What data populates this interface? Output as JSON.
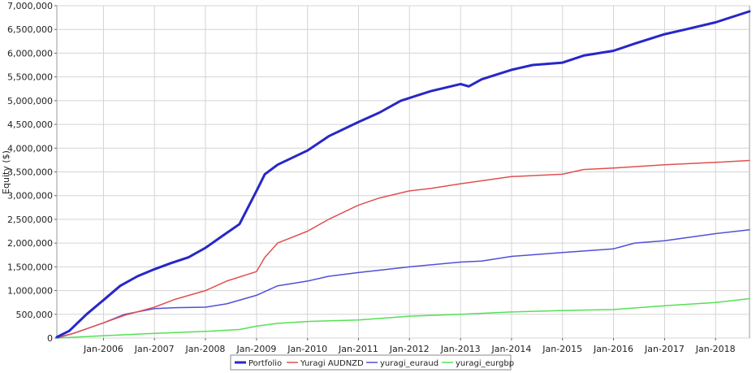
{
  "chart_data": {
    "type": "line",
    "title": "",
    "xlabel": "",
    "ylabel": "Equity ($)",
    "grid": true,
    "legend_position": "bottom-center",
    "xlim": [
      "2005-02-01",
      "2018-09-01"
    ],
    "ylim": [
      0,
      7000000
    ],
    "y_ticks": [
      {
        "value": 0,
        "label": "0"
      },
      {
        "value": 500000,
        "label": "500,000"
      },
      {
        "value": 1000000,
        "label": "1,000,000"
      },
      {
        "value": 1500000,
        "label": "1,500,000"
      },
      {
        "value": 2000000,
        "label": "2,000,000"
      },
      {
        "value": 2500000,
        "label": "2,500,000"
      },
      {
        "value": 3000000,
        "label": "3,000,000"
      },
      {
        "value": 3500000,
        "label": "3,500,000"
      },
      {
        "value": 4000000,
        "label": "4,000,000"
      },
      {
        "value": 4500000,
        "label": "4,500,000"
      },
      {
        "value": 5000000,
        "label": "5,000,000"
      },
      {
        "value": 5500000,
        "label": "5,500,000"
      },
      {
        "value": 6000000,
        "label": "6,000,000"
      },
      {
        "value": 6500000,
        "label": "6,500,000"
      },
      {
        "value": 7000000,
        "label": "7,000,000"
      }
    ],
    "x_ticks": [
      {
        "value": "2006-01-01",
        "label": "Jan-2006"
      },
      {
        "value": "2007-01-01",
        "label": "Jan-2007"
      },
      {
        "value": "2008-01-01",
        "label": "Jan-2008"
      },
      {
        "value": "2009-01-01",
        "label": "Jan-2009"
      },
      {
        "value": "2010-01-01",
        "label": "Jan-2010"
      },
      {
        "value": "2011-01-01",
        "label": "Jan-2011"
      },
      {
        "value": "2012-01-01",
        "label": "Jan-2012"
      },
      {
        "value": "2013-01-01",
        "label": "Jan-2013"
      },
      {
        "value": "2014-01-01",
        "label": "Jan-2014"
      },
      {
        "value": "2015-01-01",
        "label": "Jan-2015"
      },
      {
        "value": "2016-01-01",
        "label": "Jan-2016"
      },
      {
        "value": "2017-01-01",
        "label": "Jan-2017"
      },
      {
        "value": "2018-01-01",
        "label": "Jan-2018"
      }
    ],
    "series": [
      {
        "name": "Portfolio",
        "color": "#2727c8",
        "width": 3,
        "points": [
          [
            "2005-02-01",
            20000
          ],
          [
            "2005-05-01",
            150000
          ],
          [
            "2005-09-01",
            500000
          ],
          [
            "2006-01-01",
            800000
          ],
          [
            "2006-05-01",
            1100000
          ],
          [
            "2006-09-01",
            1300000
          ],
          [
            "2007-01-01",
            1450000
          ],
          [
            "2007-05-01",
            1580000
          ],
          [
            "2007-09-01",
            1700000
          ],
          [
            "2008-01-01",
            1900000
          ],
          [
            "2008-05-01",
            2150000
          ],
          [
            "2008-09-01",
            2400000
          ],
          [
            "2009-01-01",
            3100000
          ],
          [
            "2009-03-01",
            3450000
          ],
          [
            "2009-06-01",
            3650000
          ],
          [
            "2010-01-01",
            3950000
          ],
          [
            "2010-06-01",
            4250000
          ],
          [
            "2011-01-01",
            4550000
          ],
          [
            "2011-06-01",
            4750000
          ],
          [
            "2011-11-01",
            5000000
          ],
          [
            "2012-06-01",
            5200000
          ],
          [
            "2013-01-01",
            5350000
          ],
          [
            "2013-03-01",
            5300000
          ],
          [
            "2013-06-01",
            5450000
          ],
          [
            "2014-01-01",
            5650000
          ],
          [
            "2014-06-01",
            5750000
          ],
          [
            "2015-01-01",
            5800000
          ],
          [
            "2015-06-01",
            5950000
          ],
          [
            "2016-01-01",
            6050000
          ],
          [
            "2016-06-01",
            6200000
          ],
          [
            "2017-01-01",
            6400000
          ],
          [
            "2017-06-01",
            6500000
          ],
          [
            "2018-01-01",
            6650000
          ],
          [
            "2018-09-01",
            6880000
          ]
        ]
      },
      {
        "name": "Yuragi AUDNZD",
        "color": "#e05050",
        "width": 1.5,
        "points": [
          [
            "2005-02-01",
            10000
          ],
          [
            "2005-06-01",
            100000
          ],
          [
            "2006-01-01",
            320000
          ],
          [
            "2006-06-01",
            480000
          ],
          [
            "2007-01-01",
            650000
          ],
          [
            "2007-06-01",
            820000
          ],
          [
            "2008-01-01",
            1000000
          ],
          [
            "2008-06-01",
            1200000
          ],
          [
            "2009-01-01",
            1400000
          ],
          [
            "2009-03-01",
            1700000
          ],
          [
            "2009-06-01",
            2000000
          ],
          [
            "2010-01-01",
            2250000
          ],
          [
            "2010-06-01",
            2500000
          ],
          [
            "2011-01-01",
            2800000
          ],
          [
            "2011-06-01",
            2950000
          ],
          [
            "2012-01-01",
            3100000
          ],
          [
            "2012-06-01",
            3150000
          ],
          [
            "2013-01-01",
            3250000
          ],
          [
            "2014-01-01",
            3400000
          ],
          [
            "2015-01-01",
            3450000
          ],
          [
            "2015-06-01",
            3550000
          ],
          [
            "2016-01-01",
            3580000
          ],
          [
            "2017-01-01",
            3650000
          ],
          [
            "2018-01-01",
            3700000
          ],
          [
            "2018-09-01",
            3740000
          ]
        ]
      },
      {
        "name": "yuragi_euraud",
        "color": "#5050d8",
        "width": 1.5,
        "points": [
          [
            "2005-02-01",
            0
          ],
          [
            "2005-06-01",
            100000
          ],
          [
            "2006-01-01",
            320000
          ],
          [
            "2006-06-01",
            500000
          ],
          [
            "2007-01-01",
            620000
          ],
          [
            "2007-06-01",
            640000
          ],
          [
            "2008-01-01",
            650000
          ],
          [
            "2008-06-01",
            720000
          ],
          [
            "2009-01-01",
            900000
          ],
          [
            "2009-06-01",
            1100000
          ],
          [
            "2010-01-01",
            1200000
          ],
          [
            "2010-06-01",
            1300000
          ],
          [
            "2011-01-01",
            1380000
          ],
          [
            "2012-01-01",
            1500000
          ],
          [
            "2013-01-01",
            1600000
          ],
          [
            "2013-06-01",
            1620000
          ],
          [
            "2014-01-01",
            1720000
          ],
          [
            "2015-01-01",
            1800000
          ],
          [
            "2016-01-01",
            1880000
          ],
          [
            "2016-06-01",
            2000000
          ],
          [
            "2017-01-01",
            2050000
          ],
          [
            "2018-01-01",
            2200000
          ],
          [
            "2018-09-01",
            2280000
          ]
        ]
      },
      {
        "name": "yuragi_eurgbp",
        "color": "#55e055",
        "width": 1.5,
        "points": [
          [
            "2005-02-01",
            0
          ],
          [
            "2006-01-01",
            50000
          ],
          [
            "2007-01-01",
            100000
          ],
          [
            "2008-01-01",
            140000
          ],
          [
            "2008-09-01",
            180000
          ],
          [
            "2009-01-01",
            250000
          ],
          [
            "2009-06-01",
            310000
          ],
          [
            "2010-01-01",
            350000
          ],
          [
            "2011-01-01",
            380000
          ],
          [
            "2012-01-01",
            460000
          ],
          [
            "2013-01-01",
            500000
          ],
          [
            "2014-01-01",
            550000
          ],
          [
            "2015-01-01",
            580000
          ],
          [
            "2016-01-01",
            600000
          ],
          [
            "2017-01-01",
            680000
          ],
          [
            "2018-01-01",
            750000
          ],
          [
            "2018-09-01",
            830000
          ]
        ]
      }
    ]
  }
}
